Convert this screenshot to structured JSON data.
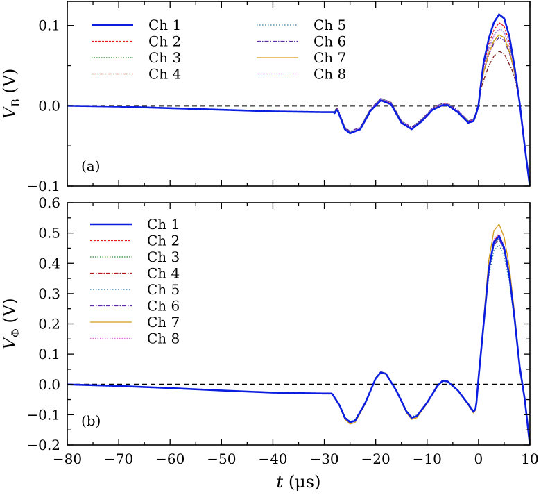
{
  "chart_data": [
    {
      "type": "line",
      "panel_tag": "(a)",
      "ylabel": {
        "main": "V",
        "sub": "B",
        "unit": " (V)"
      },
      "xlim": [
        -80,
        10
      ],
      "ylim": [
        -0.1,
        0.13
      ],
      "yticks": [
        -0.1,
        0.0,
        0.1
      ],
      "ytick_labels": [
        "−0.1",
        "0.0",
        "0.1"
      ],
      "xticks": [
        -80,
        -70,
        -60,
        -50,
        -40,
        -30,
        -20,
        -10,
        0,
        10
      ],
      "zero_line": true,
      "legend": {
        "placement": "top-left",
        "columns": 2
      },
      "base": {
        "x": [
          -80,
          -70,
          -60,
          -50,
          -40,
          -30,
          -28,
          -27.5,
          -26,
          -25,
          -23,
          -21,
          -19,
          -17,
          -15,
          -13,
          -11,
          -9,
          -7,
          -6,
          -4,
          -2,
          -1,
          -0.5,
          0,
          0.5,
          1,
          2,
          3,
          4,
          5,
          6,
          7,
          8,
          9,
          10
        ],
        "y": [
          0.0,
          -0.001,
          -0.003,
          -0.005,
          -0.007,
          -0.008,
          -0.008,
          -0.003,
          -0.028,
          -0.033,
          -0.028,
          -0.005,
          0.008,
          0.003,
          -0.02,
          -0.028,
          -0.018,
          -0.004,
          0.002,
          0.002,
          -0.007,
          -0.02,
          -0.018,
          -0.01,
          0.002,
          0.03,
          0.055,
          0.085,
          0.105,
          0.115,
          0.11,
          0.088,
          0.05,
          0.005,
          -0.05,
          -0.1
        ]
      },
      "series": [
        {
          "name": "Ch 1",
          "color": "#0b1ee0",
          "dash": "",
          "width": 2.6,
          "scale": 1.0
        },
        {
          "name": "Ch 2",
          "color": "#e81a1a",
          "dash": "3,2",
          "width": 1.3,
          "scale": 0.9
        },
        {
          "name": "Ch 3",
          "color": "#2a8a2a",
          "dash": "1.5,2",
          "width": 1.3,
          "scale": 0.76
        },
        {
          "name": "Ch 4",
          "color": "#7a1a1a",
          "dash": "6,2,1.5,2",
          "width": 1.3,
          "scale": 0.6
        },
        {
          "name": "Ch 5",
          "color": "#2a7aa8",
          "dash": "1.5,2.5",
          "width": 1.3,
          "scale": 0.84
        },
        {
          "name": "Ch 6",
          "color": "#5a2aa8",
          "dash": "6,2,1.5,2",
          "width": 1.3,
          "scale": 0.73
        },
        {
          "name": "Ch 7",
          "color": "#d49a1a",
          "dash": "",
          "width": 1.3,
          "scale": 0.78
        },
        {
          "name": "Ch 8",
          "color": "#e070e0",
          "dash": "1.5,2",
          "width": 1.3,
          "scale": 0.83
        }
      ]
    },
    {
      "type": "line",
      "panel_tag": "(b)",
      "ylabel": {
        "main": "V",
        "sub": "Φ",
        "unit": " (V)"
      },
      "xlabel": {
        "main": "t",
        "unit": "  (μs)"
      },
      "xlim": [
        -80,
        10
      ],
      "ylim": [
        -0.2,
        0.6
      ],
      "yticks": [
        -0.2,
        -0.1,
        0.0,
        0.1,
        0.2,
        0.3,
        0.4,
        0.5,
        0.6
      ],
      "ytick_labels": [
        "−0.2",
        "−0.1",
        "0.0",
        "0.1",
        "0.2",
        "0.3",
        "0.4",
        "0.5",
        "0.6"
      ],
      "xticks": [
        -80,
        -70,
        -60,
        -50,
        -40,
        -30,
        -20,
        -10,
        0,
        10
      ],
      "xtick_labels": [
        "−80",
        "−70",
        "−60",
        "−50",
        "−40",
        "−30",
        "−20",
        "−10",
        "0",
        "10"
      ],
      "zero_line": true,
      "legend": {
        "placement": "top-left",
        "columns": 1
      },
      "base": {
        "x": [
          -80,
          -70,
          -60,
          -50,
          -40,
          -30,
          -28.5,
          -27,
          -26,
          -25,
          -24,
          -22,
          -20,
          -19,
          -18,
          -16,
          -14,
          -13,
          -12,
          -10,
          -8,
          -7,
          -6,
          -4,
          -2,
          -1,
          -0.5,
          0,
          1,
          2,
          3,
          4,
          5,
          6,
          7,
          8,
          9,
          10
        ],
        "y": [
          0.0,
          -0.005,
          -0.012,
          -0.02,
          -0.027,
          -0.03,
          -0.03,
          -0.07,
          -0.11,
          -0.125,
          -0.12,
          -0.06,
          0.02,
          0.04,
          0.035,
          -0.02,
          -0.09,
          -0.11,
          -0.105,
          -0.06,
          -0.005,
          0.012,
          0.01,
          -0.02,
          -0.065,
          -0.09,
          -0.08,
          0.02,
          0.2,
          0.38,
          0.47,
          0.49,
          0.45,
          0.36,
          0.22,
          0.06,
          -0.05,
          -0.2
        ]
      },
      "series": [
        {
          "name": "Ch 1",
          "color": "#0b1ee0",
          "dash": "",
          "width": 2.6,
          "scale": 1.0
        },
        {
          "name": "Ch 2",
          "color": "#e81a1a",
          "dash": "3,2",
          "width": 1.3,
          "scale": 1.01
        },
        {
          "name": "Ch 3",
          "color": "#2a8a2a",
          "dash": "1.5,2",
          "width": 1.3,
          "scale": 0.99
        },
        {
          "name": "Ch 4",
          "color": "#b01a1a",
          "dash": "6,2,1.5,2",
          "width": 1.3,
          "scale": 1.0
        },
        {
          "name": "Ch 5",
          "color": "#2a7aa8",
          "dash": "1.5,2.5",
          "width": 1.3,
          "scale": 0.94
        },
        {
          "name": "Ch 6",
          "color": "#5a2aa8",
          "dash": "6,2,1.5,2",
          "width": 1.3,
          "scale": 0.98
        },
        {
          "name": "Ch 7",
          "color": "#d49a1a",
          "dash": "",
          "width": 1.3,
          "scale": 1.08
        },
        {
          "name": "Ch 8",
          "color": "#e070e0",
          "dash": "1.5,2",
          "width": 1.3,
          "scale": 1.02
        }
      ]
    }
  ]
}
